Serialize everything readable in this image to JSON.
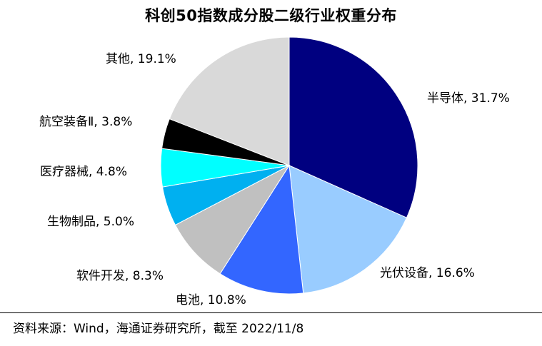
{
  "chart_data": {
    "type": "pie",
    "title": "科创50指数成分股二级行业权重分布",
    "slices": [
      {
        "label": "半导体",
        "value": 31.7,
        "value_label": "31.7%",
        "color": "#000080"
      },
      {
        "label": "光伏设备",
        "value": 16.6,
        "value_label": "16.6%",
        "color": "#99CCFF"
      },
      {
        "label": "电池",
        "value": 10.8,
        "value_label": "10.8%",
        "color": "#3366FF"
      },
      {
        "label": "软件开发",
        "value": 8.3,
        "value_label": "8.3%",
        "color": "#C0C0C0"
      },
      {
        "label": "生物制品",
        "value": 5.0,
        "value_label": "5.0%",
        "color": "#00B0F0"
      },
      {
        "label": "医疗器械",
        "value": 4.8,
        "value_label": "4.8%",
        "color": "#00FFFF"
      },
      {
        "label": "航空装备Ⅱ",
        "value": 3.8,
        "value_label": "3.8%",
        "color": "#000000"
      },
      {
        "label": "其他",
        "value": 19.1,
        "value_label": "19.1%",
        "color": "#D9D9D9"
      }
    ],
    "start": "12 o'clock",
    "direction": "clockwise"
  },
  "footer": {
    "source": "资料来源：Wind，海通证券研究所，截至 2022/11/8"
  }
}
